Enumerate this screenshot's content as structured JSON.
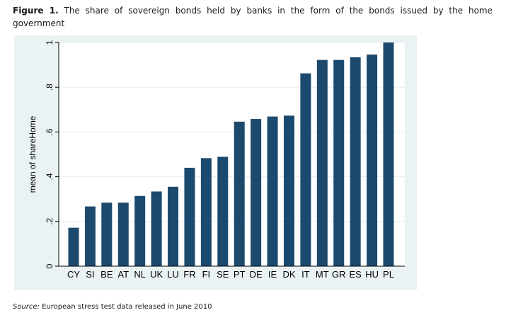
{
  "caption": {
    "label": "Figure 1.",
    "text": "The share of sovereign bonds held by banks in the form of the bonds issued by the home government"
  },
  "source": {
    "label": "Source:",
    "text": "European stress test data released in June 2010"
  },
  "chart_data": {
    "type": "bar",
    "categories": [
      "CY",
      "SI",
      "BE",
      "AT",
      "NL",
      "UK",
      "LU",
      "FR",
      "FI",
      "SE",
      "PT",
      "DE",
      "IE",
      "DK",
      "IT",
      "MT",
      "GR",
      "ES",
      "HU",
      "PL"
    ],
    "values": [
      0.172,
      0.267,
      0.284,
      0.284,
      0.314,
      0.334,
      0.355,
      0.44,
      0.483,
      0.489,
      0.646,
      0.658,
      0.669,
      0.673,
      0.862,
      0.922,
      0.922,
      0.934,
      0.946,
      1.0
    ],
    "title": "",
    "xlabel": "",
    "ylabel": "mean of shareHome",
    "ylim": [
      0,
      1
    ],
    "yticks": [
      0,
      0.2,
      0.4,
      0.6,
      0.8,
      1
    ],
    "ytick_labels": [
      "0",
      ".2",
      ".4",
      ".6",
      ".8",
      "1"
    ],
    "grid": true,
    "colors": {
      "bar": "#1c4a6e",
      "grid": "#e6eef0",
      "plot_bg": "#ffffff",
      "frame_bg": "#eaf2f3"
    }
  }
}
